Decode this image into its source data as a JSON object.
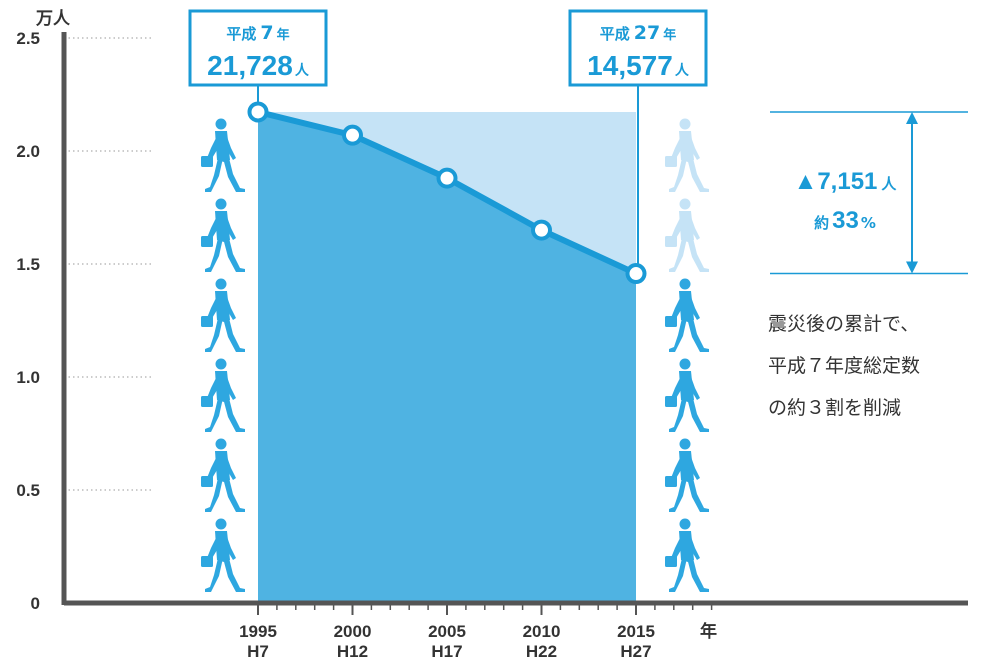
{
  "chart_data": {
    "type": "area",
    "ylabel": "万人",
    "xlabel": "年",
    "ylim": [
      0,
      2.5
    ],
    "yticks": [
      "0",
      "0.5",
      "1.0",
      "1.5",
      "2.0",
      "2.5"
    ],
    "x": [
      1995,
      2000,
      2005,
      2010,
      2015
    ],
    "x_era_labels": [
      "H7",
      "H12",
      "H17",
      "H22",
      "H27"
    ],
    "values": [
      2.1728,
      2.07,
      1.88,
      1.65,
      1.4577
    ],
    "grid": "dotted-horizontal"
  },
  "callouts": {
    "start": {
      "era": "平成",
      "era_year": "7",
      "year_suffix": "年",
      "count": "21,728",
      "unit": "人"
    },
    "end": {
      "era": "平成",
      "era_year": "27",
      "year_suffix": "年",
      "count": "14,577",
      "unit": "人"
    }
  },
  "difference": {
    "amount": "▲7,151",
    "unit": "人",
    "prefix": "約",
    "percent": "33",
    "percent_sign": "%"
  },
  "note": [
    "震災後の累計で、",
    "平成７年度総定数",
    "の約３割を削減"
  ],
  "colors": {
    "accent": "#1a9ad6",
    "area_fill": "#4fb3e2",
    "reduction_fill": "#c5e3f6",
    "person_dark": "#2ea7e0",
    "person_light": "#c5e3f6",
    "axis": "#555555"
  },
  "icons": {
    "figure": "walking-person-icon"
  }
}
